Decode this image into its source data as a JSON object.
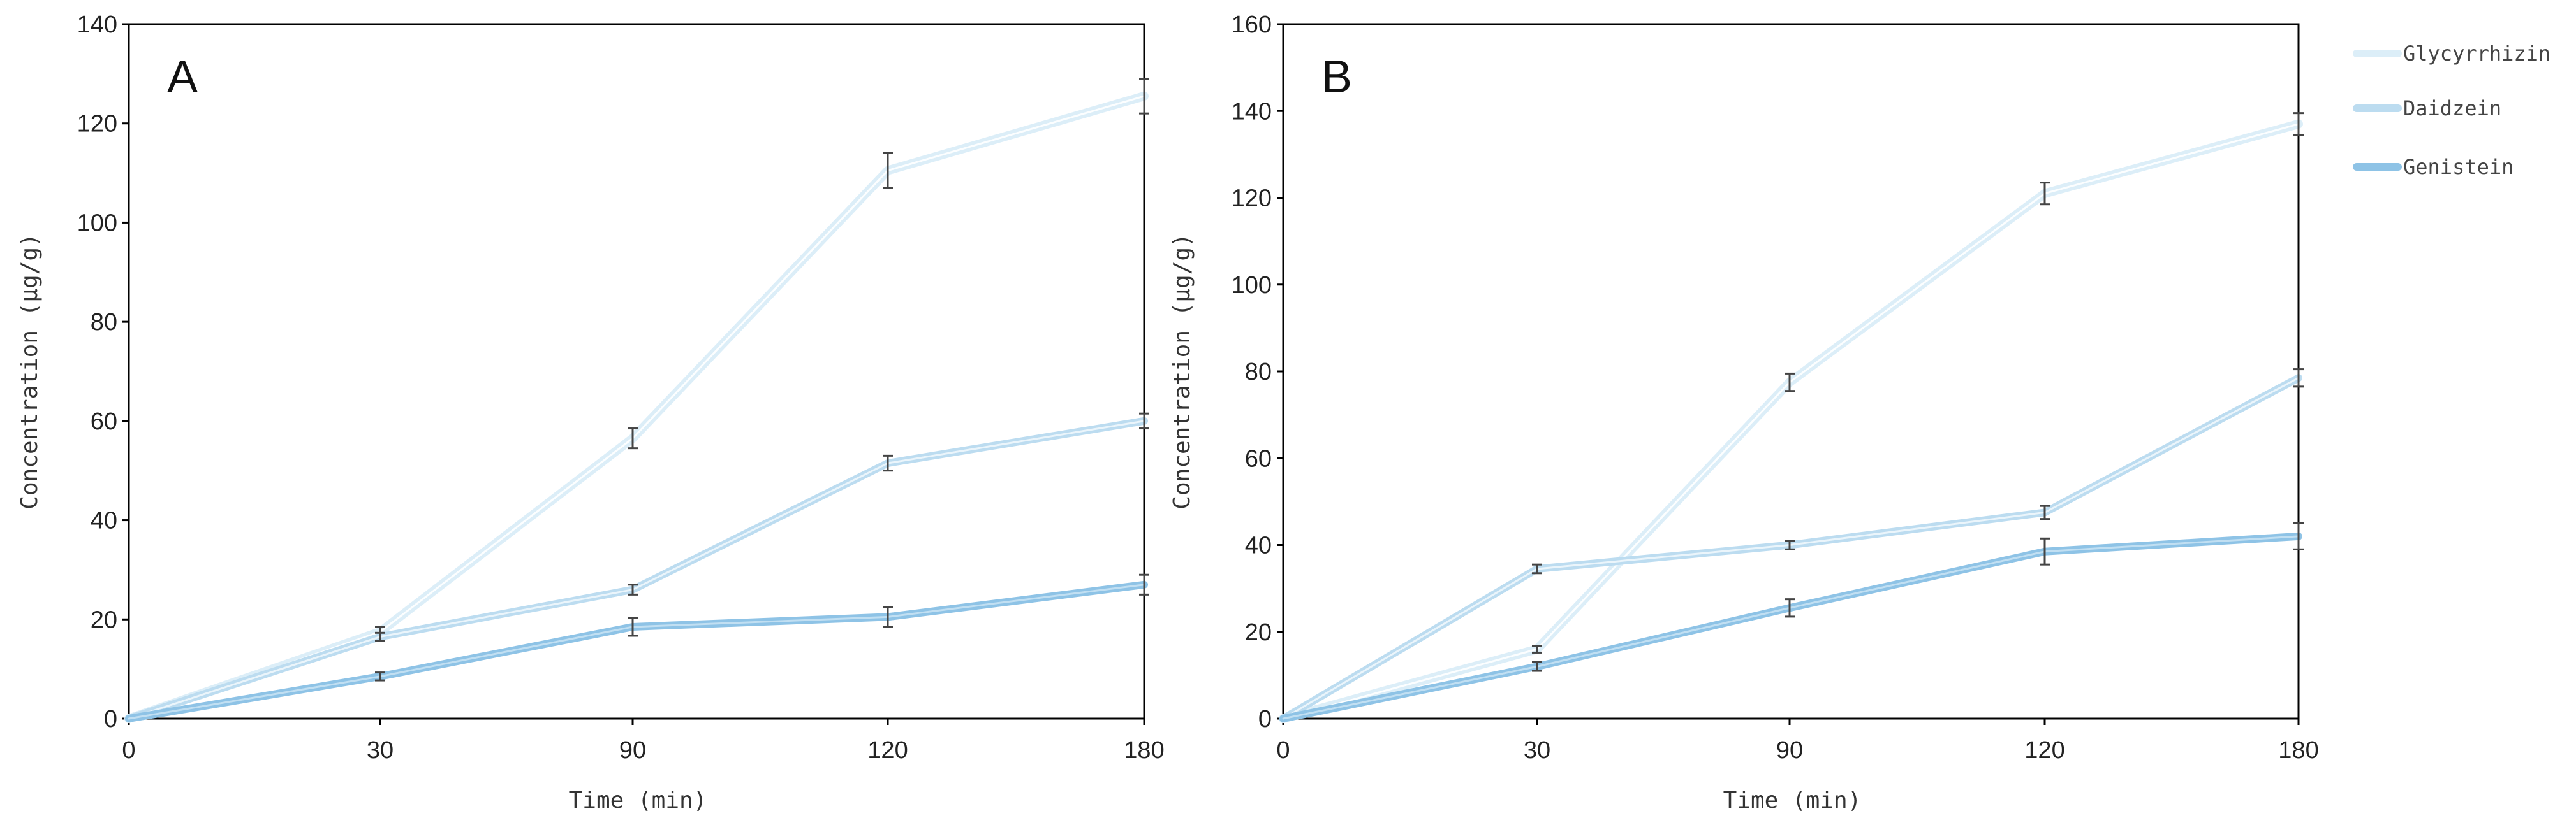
{
  "chart_data": [
    {
      "type": "line",
      "panel_label": "A",
      "xlabel": "Time (min)",
      "ylabel": "Concentration (μg/g)",
      "categories": [
        "0",
        "30",
        "90",
        "120",
        "180"
      ],
      "ylim": [
        0,
        140
      ],
      "yticks": [
        "0",
        "20",
        "40",
        "60",
        "80",
        "100",
        "120",
        "140"
      ],
      "series": [
        {
          "name": "Glycyrrhizin",
          "values": [
            0,
            17.5,
            56.5,
            110.5,
            125.5
          ],
          "errors": [
            0,
            1.0,
            2.0,
            3.5,
            3.5
          ]
        },
        {
          "name": "Daidzein",
          "values": [
            0,
            16.5,
            26,
            51.5,
            60
          ],
          "errors": [
            0,
            0.8,
            1.0,
            1.5,
            1.5
          ]
        },
        {
          "name": "Genistein",
          "values": [
            0,
            8.5,
            18.5,
            20.5,
            27
          ],
          "errors": [
            0,
            0.8,
            1.8,
            2.0,
            2.0
          ]
        }
      ]
    },
    {
      "type": "line",
      "panel_label": "B",
      "xlabel": "Time (min)",
      "ylabel": "Concentration (μg/g)",
      "categories": [
        "0",
        "30",
        "90",
        "120",
        "180"
      ],
      "ylim": [
        0,
        160
      ],
      "yticks": [
        "0",
        "20",
        "40",
        "60",
        "80",
        "100",
        "120",
        "140",
        "160"
      ],
      "series": [
        {
          "name": "Glycyrrhizin",
          "values": [
            0,
            16,
            77.5,
            121,
            137
          ],
          "errors": [
            0,
            0.8,
            2.0,
            2.5,
            2.5
          ]
        },
        {
          "name": "Daidzein",
          "values": [
            0,
            34.5,
            40,
            47.5,
            78.5
          ],
          "errors": [
            0,
            1.0,
            1.0,
            1.5,
            2.0
          ]
        },
        {
          "name": "Genistein",
          "values": [
            0,
            12,
            25.5,
            38.5,
            42
          ],
          "errors": [
            0,
            1.0,
            2.0,
            3.0,
            3.0
          ]
        }
      ]
    }
  ],
  "legend": {
    "position": "right",
    "items": [
      {
        "name": "Glycyrrhizin",
        "color": "#dceef8"
      },
      {
        "name": "Daidzein",
        "color": "#bcdcf0"
      },
      {
        "name": "Genistein",
        "color": "#8ec3e6"
      }
    ]
  },
  "colors": {
    "series": [
      "#dceef8",
      "#bcdcf0",
      "#8ec3e6"
    ],
    "outline": [
      "#ffffff",
      "#f0f7fc",
      "#c7e2f3"
    ],
    "error_bar": "#444444",
    "axis": "#000000"
  }
}
